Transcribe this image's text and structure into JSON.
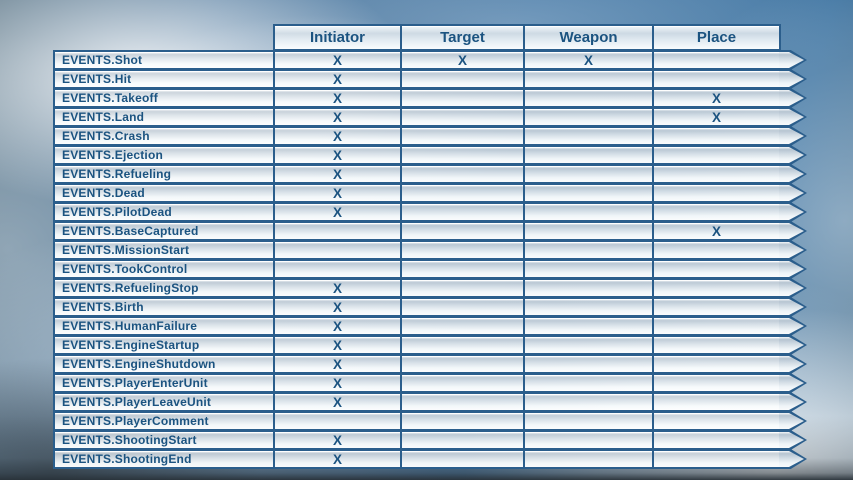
{
  "chart_data": {
    "type": "table",
    "columns": [
      "Initiator",
      "Target",
      "Weapon",
      "Place"
    ],
    "marker": "X",
    "rows": [
      {
        "label": "EVENTS.Shot",
        "initiator": "X",
        "target": "X",
        "weapon": "X",
        "place": ""
      },
      {
        "label": "EVENTS.Hit",
        "initiator": "X",
        "target": "",
        "weapon": "",
        "place": ""
      },
      {
        "label": "EVENTS.Takeoff",
        "initiator": "X",
        "target": "",
        "weapon": "",
        "place": "X"
      },
      {
        "label": "EVENTS.Land",
        "initiator": "X",
        "target": "",
        "weapon": "",
        "place": "X"
      },
      {
        "label": "EVENTS.Crash",
        "initiator": "X",
        "target": "",
        "weapon": "",
        "place": ""
      },
      {
        "label": "EVENTS.Ejection",
        "initiator": "X",
        "target": "",
        "weapon": "",
        "place": ""
      },
      {
        "label": "EVENTS.Refueling",
        "initiator": "X",
        "target": "",
        "weapon": "",
        "place": ""
      },
      {
        "label": "EVENTS.Dead",
        "initiator": "X",
        "target": "",
        "weapon": "",
        "place": ""
      },
      {
        "label": "EVENTS.PilotDead",
        "initiator": "X",
        "target": "",
        "weapon": "",
        "place": ""
      },
      {
        "label": "EVENTS.BaseCaptured",
        "initiator": "",
        "target": "",
        "weapon": "",
        "place": "X"
      },
      {
        "label": "EVENTS.MissionStart",
        "initiator": "",
        "target": "",
        "weapon": "",
        "place": ""
      },
      {
        "label": "EVENTS.TookControl",
        "initiator": "",
        "target": "",
        "weapon": "",
        "place": ""
      },
      {
        "label": "EVENTS.RefuelingStop",
        "initiator": "X",
        "target": "",
        "weapon": "",
        "place": ""
      },
      {
        "label": "EVENTS.Birth",
        "initiator": "X",
        "target": "",
        "weapon": "",
        "place": ""
      },
      {
        "label": "EVENTS.HumanFailure",
        "initiator": "X",
        "target": "",
        "weapon": "",
        "place": ""
      },
      {
        "label": "EVENTS.EngineStartup",
        "initiator": "X",
        "target": "",
        "weapon": "",
        "place": ""
      },
      {
        "label": "EVENTS.EngineShutdown",
        "initiator": "X",
        "target": "",
        "weapon": "",
        "place": ""
      },
      {
        "label": "EVENTS.PlayerEnterUnit",
        "initiator": "X",
        "target": "",
        "weapon": "",
        "place": ""
      },
      {
        "label": "EVENTS.PlayerLeaveUnit",
        "initiator": "X",
        "target": "",
        "weapon": "",
        "place": ""
      },
      {
        "label": "EVENTS.PlayerComment",
        "initiator": "",
        "target": "",
        "weapon": "",
        "place": ""
      },
      {
        "label": "EVENTS.ShootingStart",
        "initiator": "X",
        "target": "",
        "weapon": "",
        "place": ""
      },
      {
        "label": "EVENTS.ShootingEnd",
        "initiator": "X",
        "target": "",
        "weapon": "",
        "place": ""
      }
    ]
  },
  "colors": {
    "table_border": "#2b5e8c",
    "text": "#1b5380",
    "sky_base": "#4779a6",
    "bottom_band": "#283138"
  }
}
